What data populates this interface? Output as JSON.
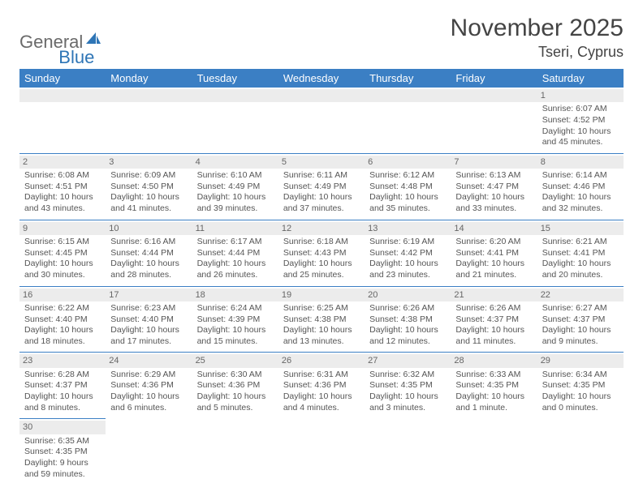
{
  "logo": {
    "text1": "General",
    "text2": "Blue"
  },
  "title": {
    "month": "November 2025",
    "location": "Tseri, Cyprus"
  },
  "colors": {
    "header_bg": "#3b7fc4",
    "header_text": "#ffffff",
    "numbar_bg": "#ececec",
    "cell_border": "#3b7fc4",
    "body_text": "#555555",
    "logo_general": "#6a6a6a",
    "logo_blue": "#2e75b6"
  },
  "weekdays": [
    "Sunday",
    "Monday",
    "Tuesday",
    "Wednesday",
    "Thursday",
    "Friday",
    "Saturday"
  ],
  "first_weekday_index": 6,
  "days": [
    {
      "n": 1,
      "sunrise": "6:07 AM",
      "sunset": "4:52 PM",
      "daylight": "10 hours and 45 minutes."
    },
    {
      "n": 2,
      "sunrise": "6:08 AM",
      "sunset": "4:51 PM",
      "daylight": "10 hours and 43 minutes."
    },
    {
      "n": 3,
      "sunrise": "6:09 AM",
      "sunset": "4:50 PM",
      "daylight": "10 hours and 41 minutes."
    },
    {
      "n": 4,
      "sunrise": "6:10 AM",
      "sunset": "4:49 PM",
      "daylight": "10 hours and 39 minutes."
    },
    {
      "n": 5,
      "sunrise": "6:11 AM",
      "sunset": "4:49 PM",
      "daylight": "10 hours and 37 minutes."
    },
    {
      "n": 6,
      "sunrise": "6:12 AM",
      "sunset": "4:48 PM",
      "daylight": "10 hours and 35 minutes."
    },
    {
      "n": 7,
      "sunrise": "6:13 AM",
      "sunset": "4:47 PM",
      "daylight": "10 hours and 33 minutes."
    },
    {
      "n": 8,
      "sunrise": "6:14 AM",
      "sunset": "4:46 PM",
      "daylight": "10 hours and 32 minutes."
    },
    {
      "n": 9,
      "sunrise": "6:15 AM",
      "sunset": "4:45 PM",
      "daylight": "10 hours and 30 minutes."
    },
    {
      "n": 10,
      "sunrise": "6:16 AM",
      "sunset": "4:44 PM",
      "daylight": "10 hours and 28 minutes."
    },
    {
      "n": 11,
      "sunrise": "6:17 AM",
      "sunset": "4:44 PM",
      "daylight": "10 hours and 26 minutes."
    },
    {
      "n": 12,
      "sunrise": "6:18 AM",
      "sunset": "4:43 PM",
      "daylight": "10 hours and 25 minutes."
    },
    {
      "n": 13,
      "sunrise": "6:19 AM",
      "sunset": "4:42 PM",
      "daylight": "10 hours and 23 minutes."
    },
    {
      "n": 14,
      "sunrise": "6:20 AM",
      "sunset": "4:41 PM",
      "daylight": "10 hours and 21 minutes."
    },
    {
      "n": 15,
      "sunrise": "6:21 AM",
      "sunset": "4:41 PM",
      "daylight": "10 hours and 20 minutes."
    },
    {
      "n": 16,
      "sunrise": "6:22 AM",
      "sunset": "4:40 PM",
      "daylight": "10 hours and 18 minutes."
    },
    {
      "n": 17,
      "sunrise": "6:23 AM",
      "sunset": "4:40 PM",
      "daylight": "10 hours and 17 minutes."
    },
    {
      "n": 18,
      "sunrise": "6:24 AM",
      "sunset": "4:39 PM",
      "daylight": "10 hours and 15 minutes."
    },
    {
      "n": 19,
      "sunrise": "6:25 AM",
      "sunset": "4:38 PM",
      "daylight": "10 hours and 13 minutes."
    },
    {
      "n": 20,
      "sunrise": "6:26 AM",
      "sunset": "4:38 PM",
      "daylight": "10 hours and 12 minutes."
    },
    {
      "n": 21,
      "sunrise": "6:26 AM",
      "sunset": "4:37 PM",
      "daylight": "10 hours and 11 minutes."
    },
    {
      "n": 22,
      "sunrise": "6:27 AM",
      "sunset": "4:37 PM",
      "daylight": "10 hours and 9 minutes."
    },
    {
      "n": 23,
      "sunrise": "6:28 AM",
      "sunset": "4:37 PM",
      "daylight": "10 hours and 8 minutes."
    },
    {
      "n": 24,
      "sunrise": "6:29 AM",
      "sunset": "4:36 PM",
      "daylight": "10 hours and 6 minutes."
    },
    {
      "n": 25,
      "sunrise": "6:30 AM",
      "sunset": "4:36 PM",
      "daylight": "10 hours and 5 minutes."
    },
    {
      "n": 26,
      "sunrise": "6:31 AM",
      "sunset": "4:36 PM",
      "daylight": "10 hours and 4 minutes."
    },
    {
      "n": 27,
      "sunrise": "6:32 AM",
      "sunset": "4:35 PM",
      "daylight": "10 hours and 3 minutes."
    },
    {
      "n": 28,
      "sunrise": "6:33 AM",
      "sunset": "4:35 PM",
      "daylight": "10 hours and 1 minute."
    },
    {
      "n": 29,
      "sunrise": "6:34 AM",
      "sunset": "4:35 PM",
      "daylight": "10 hours and 0 minutes."
    },
    {
      "n": 30,
      "sunrise": "6:35 AM",
      "sunset": "4:35 PM",
      "daylight": "9 hours and 59 minutes."
    }
  ],
  "labels": {
    "sunrise": "Sunrise:",
    "sunset": "Sunset:",
    "daylight": "Daylight:"
  }
}
